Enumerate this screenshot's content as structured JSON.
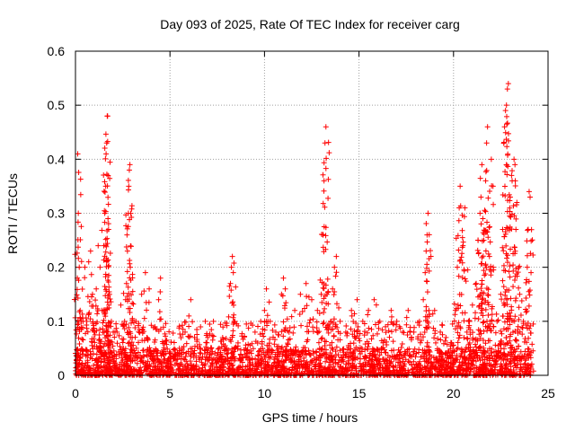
{
  "chart_data": {
    "type": "scatter",
    "title": "Day 093 of 2025, Rate Of TEC Index for receiver carg",
    "xlabel": "GPS time / hours",
    "ylabel": "ROTI / TECUs",
    "xlim": [
      0,
      25
    ],
    "ylim": [
      0,
      0.6
    ],
    "xticks": [
      0,
      5,
      10,
      15,
      20,
      25
    ],
    "xtick_labels": [
      "0",
      "5",
      "10",
      "15",
      "20",
      "25"
    ],
    "yticks": [
      0,
      0.1,
      0.2,
      0.3,
      0.4,
      0.5,
      0.6
    ],
    "ytick_labels": [
      "0",
      "0.1",
      "0.2",
      "0.3",
      "0.4",
      "0.5",
      "0.6"
    ],
    "grid": true,
    "marker": "+",
    "series": [
      {
        "name": "ROTI",
        "color": "#ff0000",
        "points": [
          [
            0.1,
            0.18
          ],
          [
            0.12,
            0.41
          ],
          [
            0.15,
            0.3
          ],
          [
            0.2,
            0.2
          ],
          [
            0.25,
            0.12
          ],
          [
            0.4,
            0.1
          ],
          [
            0.5,
            0.2
          ],
          [
            0.6,
            0.1
          ],
          [
            0.7,
            0.21
          ],
          [
            0.8,
            0.23
          ],
          [
            0.9,
            0.15
          ],
          [
            1.0,
            0.08
          ],
          [
            1.1,
            0.16
          ],
          [
            1.2,
            0.24
          ],
          [
            1.3,
            0.2
          ],
          [
            1.4,
            0.12
          ],
          [
            1.5,
            0.24
          ],
          [
            1.55,
            0.3
          ],
          [
            1.6,
            0.35
          ],
          [
            1.62,
            0.41
          ],
          [
            1.65,
            0.43
          ],
          [
            1.68,
            0.48
          ],
          [
            1.7,
            0.48
          ],
          [
            1.72,
            0.29
          ],
          [
            1.75,
            0.27
          ],
          [
            1.8,
            0.15
          ],
          [
            1.9,
            0.1
          ],
          [
            2.0,
            0.08
          ],
          [
            2.2,
            0.08
          ],
          [
            2.4,
            0.13
          ],
          [
            2.6,
            0.1
          ],
          [
            2.7,
            0.17
          ],
          [
            2.75,
            0.23
          ],
          [
            2.8,
            0.3
          ],
          [
            2.82,
            0.35
          ],
          [
            2.85,
            0.38
          ],
          [
            2.88,
            0.39
          ],
          [
            2.9,
            0.2
          ],
          [
            3.0,
            0.07
          ],
          [
            3.2,
            0.1
          ],
          [
            3.5,
            0.15
          ],
          [
            3.7,
            0.19
          ],
          [
            3.9,
            0.16
          ],
          [
            4.2,
            0.09
          ],
          [
            4.4,
            0.14
          ],
          [
            4.5,
            0.18
          ],
          [
            4.7,
            0.06
          ],
          [
            5.0,
            0.04
          ],
          [
            5.5,
            0.05
          ],
          [
            5.8,
            0.08
          ],
          [
            6.0,
            0.11
          ],
          [
            6.1,
            0.14
          ],
          [
            6.3,
            0.07
          ],
          [
            6.6,
            0.05
          ],
          [
            7.0,
            0.07
          ],
          [
            7.3,
            0.1
          ],
          [
            7.6,
            0.05
          ],
          [
            8.0,
            0.05
          ],
          [
            8.2,
            0.17
          ],
          [
            8.25,
            0.2
          ],
          [
            8.3,
            0.22
          ],
          [
            8.35,
            0.19
          ],
          [
            8.4,
            0.1
          ],
          [
            8.6,
            0.06
          ],
          [
            9.0,
            0.05
          ],
          [
            9.5,
            0.08
          ],
          [
            9.8,
            0.1
          ],
          [
            10.0,
            0.12
          ],
          [
            10.1,
            0.16
          ],
          [
            10.3,
            0.1
          ],
          [
            10.6,
            0.08
          ],
          [
            10.9,
            0.15
          ],
          [
            11.0,
            0.18
          ],
          [
            11.1,
            0.16
          ],
          [
            11.3,
            0.08
          ],
          [
            11.6,
            0.12
          ],
          [
            11.9,
            0.15
          ],
          [
            12.2,
            0.17
          ],
          [
            12.5,
            0.14
          ],
          [
            12.8,
            0.12
          ],
          [
            13.0,
            0.15
          ],
          [
            13.1,
            0.26
          ],
          [
            13.15,
            0.36
          ],
          [
            13.2,
            0.43
          ],
          [
            13.25,
            0.46
          ],
          [
            13.3,
            0.15
          ],
          [
            13.5,
            0.1
          ],
          [
            13.6,
            0.16
          ],
          [
            13.7,
            0.2
          ],
          [
            13.8,
            0.22
          ],
          [
            14.0,
            0.1
          ],
          [
            14.3,
            0.08
          ],
          [
            14.6,
            0.12
          ],
          [
            14.9,
            0.14
          ],
          [
            15.2,
            0.1
          ],
          [
            15.5,
            0.12
          ],
          [
            15.8,
            0.14
          ],
          [
            16.1,
            0.1
          ],
          [
            16.4,
            0.09
          ],
          [
            16.7,
            0.12
          ],
          [
            17.0,
            0.1
          ],
          [
            17.3,
            0.08
          ],
          [
            17.6,
            0.12
          ],
          [
            17.9,
            0.08
          ],
          [
            18.2,
            0.1
          ],
          [
            18.4,
            0.14
          ],
          [
            18.5,
            0.19
          ],
          [
            18.55,
            0.23
          ],
          [
            18.6,
            0.26
          ],
          [
            18.65,
            0.3
          ],
          [
            18.7,
            0.12
          ],
          [
            19.0,
            0.12
          ],
          [
            19.3,
            0.08
          ],
          [
            19.6,
            0.07
          ],
          [
            19.9,
            0.06
          ],
          [
            20.1,
            0.12
          ],
          [
            20.2,
            0.2
          ],
          [
            20.3,
            0.31
          ],
          [
            20.35,
            0.35
          ],
          [
            20.5,
            0.24
          ],
          [
            20.6,
            0.31
          ],
          [
            20.8,
            0.1
          ],
          [
            21.0,
            0.13
          ],
          [
            21.2,
            0.17
          ],
          [
            21.3,
            0.25
          ],
          [
            21.4,
            0.3
          ],
          [
            21.45,
            0.33
          ],
          [
            21.5,
            0.39
          ],
          [
            21.55,
            0.29
          ],
          [
            21.6,
            0.25
          ],
          [
            21.7,
            0.36
          ],
          [
            21.75,
            0.43
          ],
          [
            21.8,
            0.46
          ],
          [
            21.9,
            0.22
          ],
          [
            22.0,
            0.4
          ],
          [
            22.1,
            0.2
          ],
          [
            22.3,
            0.1
          ],
          [
            22.5,
            0.15
          ],
          [
            22.6,
            0.27
          ],
          [
            22.7,
            0.46
          ],
          [
            22.75,
            0.49
          ],
          [
            22.8,
            0.5
          ],
          [
            22.85,
            0.53
          ],
          [
            22.9,
            0.54
          ],
          [
            23.0,
            0.33
          ],
          [
            23.1,
            0.36
          ],
          [
            23.2,
            0.4
          ],
          [
            23.25,
            0.39
          ],
          [
            23.3,
            0.27
          ],
          [
            23.35,
            0.32
          ],
          [
            23.5,
            0.15
          ],
          [
            23.7,
            0.1
          ],
          [
            23.9,
            0.2
          ],
          [
            23.95,
            0.27
          ],
          [
            24.0,
            0.34
          ],
          [
            24.05,
            0.33
          ],
          [
            24.1,
            0.19
          ]
        ],
        "baseline_density": "dense cloud of points between 0 and 0.05 across 0-24 h"
      }
    ]
  }
}
